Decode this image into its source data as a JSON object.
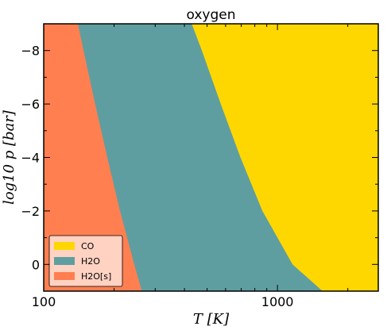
{
  "chart_data": {
    "type": "area",
    "title": "oxygen",
    "xlabel": "T [K]",
    "ylabel": "log10 p [bar]",
    "xscale": "log",
    "xlim": [
      100,
      2700
    ],
    "ylim": [
      -9,
      1
    ],
    "y_inverted": true,
    "x_tick_labels": [
      "100",
      "1000"
    ],
    "y_tick_labels": [
      "−8",
      "−6",
      "−4",
      "−2",
      "0"
    ],
    "y_tick_values": [
      -8,
      -6,
      -4,
      -2,
      0
    ],
    "legend_position": "lower-left",
    "series": [
      {
        "name": "CO",
        "color": "#FFD700",
        "region": "right of CO/H2O boundary"
      },
      {
        "name": "H2O",
        "color": "#5F9EA0",
        "region": "between H2O[s]/H2O and CO/H2O boundaries"
      },
      {
        "name": "H2O[s]",
        "color": "#FF7F50",
        "region": "left of H2O[s]/H2O boundary"
      }
    ],
    "boundaries": [
      {
        "between": [
          "H2O[s]",
          "H2O"
        ],
        "log10_p": [
          -9,
          -8,
          -6,
          -4,
          -2,
          0,
          1
        ],
        "T": [
          140,
          148,
          166,
          187,
          212,
          244,
          263
        ]
      },
      {
        "between": [
          "H2O",
          "CO"
        ],
        "log10_p": [
          -9,
          -8,
          -6,
          -4,
          -2,
          0,
          1
        ],
        "T": [
          430,
          475,
          572,
          695,
          862,
          1160,
          1560
        ]
      }
    ]
  }
}
